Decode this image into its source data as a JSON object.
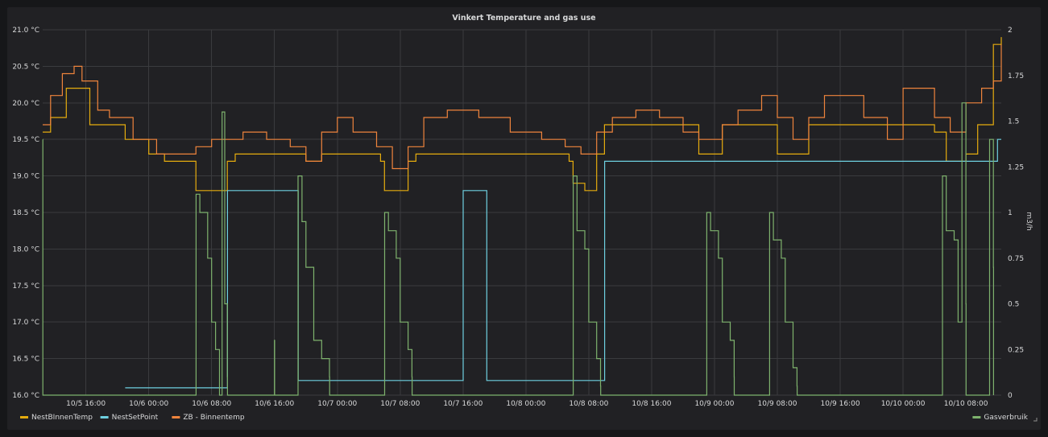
{
  "chart_data": {
    "type": "line",
    "title": "Vinkert Temperature and gas use",
    "xlabel": "",
    "ylabel_left": "",
    "ylabel_right": "m3/h",
    "x_range": [
      "10/5 10:30",
      "10/10 12:30"
    ],
    "ylim_left": [
      16.0,
      21.0
    ],
    "ylim_right": [
      0,
      2
    ],
    "left_ticks": [
      "16.0 °C",
      "16.5 °C",
      "17.0 °C",
      "17.5 °C",
      "18.0 °C",
      "18.5 °C",
      "19.0 °C",
      "19.5 °C",
      "20.0 °C",
      "20.5 °C",
      "21.0 °C"
    ],
    "right_ticks": [
      "0",
      "0.25",
      "0.5",
      "0.75",
      "1",
      "1.25",
      "1.5",
      "1.75",
      "2"
    ],
    "x_ticks": [
      "10/5 16:00",
      "10/6 00:00",
      "10/6 08:00",
      "10/6 16:00",
      "10/7 00:00",
      "10/7 08:00",
      "10/7 16:00",
      "10/8 00:00",
      "10/8 08:00",
      "10/8 16:00",
      "10/9 00:00",
      "10/9 08:00",
      "10/9 16:00",
      "10/10 00:00",
      "10/10 08:00"
    ],
    "grid": true,
    "legend_position": "bottom",
    "series": [
      {
        "name": "NestBInnenTemp",
        "color": "#e5ac0e",
        "axis": "left",
        "x": [
          "10/5 10:30",
          "10/5 11:30",
          "10/5 13:30",
          "10/5 14:30",
          "10/5 16:30",
          "10/5 18:00",
          "10/5 21:00",
          "10/6 00:00",
          "10/6 02:00",
          "10/6 05:00",
          "10/6 06:00",
          "10/6 07:00",
          "10/6 10:00",
          "10/6 11:00",
          "10/6 14:00",
          "10/6 18:00",
          "10/6 20:00",
          "10/6 22:00",
          "10/7 02:00",
          "10/7 05:30",
          "10/7 06:00",
          "10/7 07:30",
          "10/7 09:00",
          "10/7 10:00",
          "10/7 14:00",
          "10/7 20:00",
          "10/8 02:00",
          "10/8 05:30",
          "10/8 06:00",
          "10/8 07:30",
          "10/8 09:00",
          "10/8 10:00",
          "10/8 13:00",
          "10/8 20:00",
          "10/8 22:00",
          "10/9 01:00",
          "10/9 03:00",
          "10/9 06:00",
          "10/9 08:00",
          "10/9 10:00",
          "10/9 12:00",
          "10/9 16:00",
          "10/9 20:00",
          "10/10 00:00",
          "10/10 04:00",
          "10/10 05:30",
          "10/10 08:00",
          "10/10 09:30",
          "10/10 10:30",
          "10/10 11:30",
          "10/10 12:30"
        ],
        "values": [
          19.6,
          19.8,
          20.2,
          20.2,
          19.7,
          19.7,
          19.5,
          19.3,
          19.2,
          19.2,
          18.8,
          18.8,
          19.2,
          19.3,
          19.3,
          19.3,
          19.2,
          19.3,
          19.3,
          19.2,
          18.8,
          18.8,
          19.2,
          19.3,
          19.3,
          19.3,
          19.3,
          19.2,
          18.9,
          18.8,
          19.3,
          19.7,
          19.7,
          19.7,
          19.3,
          19.7,
          19.7,
          19.7,
          19.3,
          19.3,
          19.7,
          19.7,
          19.7,
          19.7,
          19.6,
          19.2,
          19.3,
          19.7,
          19.7,
          20.8,
          20.9
        ]
      },
      {
        "name": "NestSetPoint",
        "color": "#6ed0e0",
        "axis": "left",
        "x": [
          "10/5 21:00",
          "10/6 10:00",
          "10/6 10:01",
          "10/6 19:00",
          "10/6 19:01",
          "10/7 16:00",
          "10/7 16:01",
          "10/7 19:00",
          "10/7 19:01",
          "10/8 10:00",
          "10/8 10:01",
          "10/10 12:00",
          "10/10 12:01",
          "10/10 12:30"
        ],
        "values": [
          16.1,
          16.1,
          18.8,
          18.8,
          16.2,
          16.2,
          18.8,
          18.8,
          16.2,
          16.2,
          19.2,
          19.2,
          19.5,
          19.5
        ]
      },
      {
        "name": "ZB - Binnentemp",
        "color": "#ef843c",
        "axis": "left",
        "x": [
          "10/5 10:30",
          "10/5 11:30",
          "10/5 13:00",
          "10/5 14:30",
          "10/5 15:30",
          "10/5 17:30",
          "10/5 19:00",
          "10/5 22:00",
          "10/6 01:00",
          "10/6 03:00",
          "10/6 06:00",
          "10/6 08:00",
          "10/6 10:00",
          "10/6 12:00",
          "10/6 15:00",
          "10/6 18:00",
          "10/6 20:00",
          "10/6 22:00",
          "10/7 00:00",
          "10/7 02:00",
          "10/7 05:00",
          "10/7 07:00",
          "10/7 09:00",
          "10/7 11:00",
          "10/7 14:00",
          "10/7 18:00",
          "10/7 22:00",
          "10/8 02:00",
          "10/8 05:00",
          "10/8 07:00",
          "10/8 09:00",
          "10/8 11:00",
          "10/8 14:00",
          "10/8 17:00",
          "10/8 20:00",
          "10/8 22:00",
          "10/9 01:00",
          "10/9 03:00",
          "10/9 06:00",
          "10/9 08:00",
          "10/9 10:00",
          "10/9 12:00",
          "10/9 14:00",
          "10/9 17:00",
          "10/9 19:00",
          "10/9 22:00",
          "10/10 00:00",
          "10/10 02:00",
          "10/10 04:00",
          "10/10 06:00",
          "10/10 08:00",
          "10/10 10:00",
          "10/10 11:30",
          "10/10 12:30"
        ],
        "values": [
          19.7,
          20.1,
          20.4,
          20.5,
          20.3,
          19.9,
          19.8,
          19.5,
          19.3,
          19.3,
          19.4,
          19.5,
          19.5,
          19.6,
          19.5,
          19.4,
          19.2,
          19.6,
          19.8,
          19.6,
          19.4,
          19.1,
          19.4,
          19.8,
          19.9,
          19.8,
          19.6,
          19.5,
          19.4,
          19.3,
          19.6,
          19.8,
          19.9,
          19.8,
          19.6,
          19.5,
          19.7,
          19.9,
          20.1,
          19.8,
          19.5,
          19.8,
          20.1,
          20.1,
          19.8,
          19.5,
          20.2,
          20.2,
          19.8,
          19.6,
          20.0,
          20.2,
          20.3,
          20.8
        ]
      },
      {
        "name": "Gasverbruik",
        "color": "#7eb26d",
        "axis": "right",
        "x": [
          "10/5 10:30",
          "10/5 10:31",
          "10/6 06:00",
          "10/6 06:01",
          "10/6 06:30",
          "10/6 07:30",
          "10/6 08:00",
          "10/6 08:30",
          "10/6 09:00",
          "10/6 09:20",
          "10/6 09:40",
          "10/6 10:00",
          "10/6 10:01",
          "10/6 16:00",
          "10/6 16:01",
          "10/6 19:00",
          "10/6 19:30",
          "10/6 20:00",
          "10/6 21:00",
          "10/6 22:00",
          "10/6 23:00",
          "10/6 23:01",
          "10/7 06:00",
          "10/7 06:01",
          "10/7 06:30",
          "10/7 07:30",
          "10/7 08:00",
          "10/7 09:00",
          "10/7 09:30",
          "10/7 09:31",
          "10/8 06:00",
          "10/8 06:01",
          "10/8 06:30",
          "10/8 07:30",
          "10/8 08:00",
          "10/8 09:00",
          "10/8 09:30",
          "10/8 09:31",
          "10/8 23:00",
          "10/8 23:01",
          "10/8 23:30",
          "10/9 00:30",
          "10/9 01:00",
          "10/9 02:00",
          "10/9 02:30",
          "10/9 02:31",
          "10/9 07:00",
          "10/9 07:01",
          "10/9 07:30",
          "10/9 08:30",
          "10/9 09:00",
          "10/9 10:00",
          "10/9 10:30",
          "10/9 10:31",
          "10/10 05:00",
          "10/10 05:01",
          "10/10 05:30",
          "10/10 06:30",
          "10/10 07:00",
          "10/10 07:30",
          "10/10 08:00",
          "10/10 08:01",
          "10/10 11:00",
          "10/10 11:01",
          "10/10 11:30",
          "10/10 11:31"
        ],
        "values": [
          1.4,
          0,
          0,
          1.1,
          1.0,
          0.75,
          0.4,
          0.25,
          0,
          1.55,
          0.5,
          0.1,
          0,
          0.3,
          0,
          1.2,
          0.95,
          0.7,
          0.3,
          0.2,
          0.1,
          0,
          0,
          1.0,
          0.9,
          0.75,
          0.4,
          0.25,
          0.1,
          0,
          0,
          1.2,
          0.9,
          0.8,
          0.4,
          0.2,
          0.05,
          0,
          0,
          1.0,
          0.9,
          0.75,
          0.4,
          0.3,
          0.1,
          0,
          0,
          1.0,
          0.85,
          0.75,
          0.4,
          0.15,
          0.05,
          0,
          0,
          1.2,
          0.9,
          0.85,
          0.4,
          1.6,
          0.5,
          0,
          0,
          1.4,
          0.7,
          0
        ]
      }
    ]
  }
}
